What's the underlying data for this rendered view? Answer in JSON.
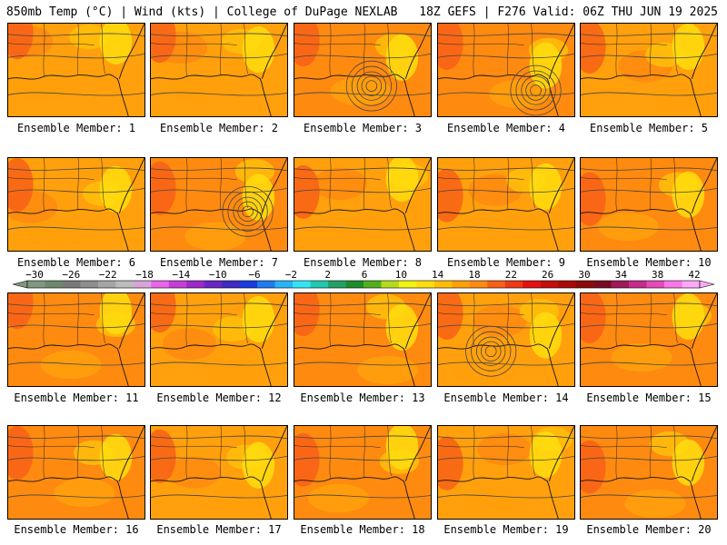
{
  "header": {
    "left_title": "850mb Temp (°C) | Wind (kts) | College of DuPage NEXLAB",
    "right_title": "18Z GEFS | F276 Valid: 06Z THU JUN 19 2025"
  },
  "colorbar": {
    "labels": [
      "−30",
      "−26",
      "−22",
      "−18",
      "−14",
      "−10",
      "−6",
      "−2",
      "2",
      "6",
      "10",
      "14",
      "18",
      "22",
      "26",
      "30",
      "34",
      "38",
      "42"
    ],
    "colors": [
      "#7f977f",
      "#6e876e",
      "#7a7a7a",
      "#8d8d8d",
      "#a5a5a5",
      "#bcbcbc",
      "#d8a4d8",
      "#e866e8",
      "#c43ed8",
      "#9c2ac8",
      "#6a26c4",
      "#3e2cc4",
      "#1a3ce0",
      "#1e7cf0",
      "#28b4f4",
      "#34e4f4",
      "#22c8b0",
      "#22a066",
      "#1e8c2c",
      "#52b01e",
      "#b4dc1e",
      "#f2f214",
      "#ffdd0e",
      "#ffbe0a",
      "#ffa00c",
      "#ff8a10",
      "#f86018",
      "#ec3a16",
      "#e01414",
      "#c40e0e",
      "#a80a0a",
      "#8c0a0a",
      "#7a0a22",
      "#a01a5a",
      "#c62a8a",
      "#e44ab8",
      "#f878e8",
      "#fcaaf8"
    ]
  },
  "panels": [
    {
      "label": "Ensemble Member: 1",
      "base": "#ffa00c",
      "low": false
    },
    {
      "label": "Ensemble Member: 2",
      "base": "#ffa00c",
      "low": false
    },
    {
      "label": "Ensemble Member: 3",
      "base": "#ff8a10",
      "low": true
    },
    {
      "label": "Ensemble Member: 4",
      "base": "#ff8a10",
      "low": true
    },
    {
      "label": "Ensemble Member: 5",
      "base": "#ffa00c",
      "low": false
    },
    {
      "label": "Ensemble Member: 6",
      "base": "#ffa00c",
      "low": false
    },
    {
      "label": "Ensemble Member: 7",
      "base": "#ff8a10",
      "low": true
    },
    {
      "label": "Ensemble Member: 8",
      "base": "#ffa00c",
      "low": false
    },
    {
      "label": "Ensemble Member: 9",
      "base": "#ffa00c",
      "low": false
    },
    {
      "label": "Ensemble Member: 10",
      "base": "#ff8a10",
      "low": false
    },
    {
      "label": "Ensemble Member: 11",
      "base": "#ff8a10",
      "low": false
    },
    {
      "label": "Ensemble Member: 12",
      "base": "#ffa00c",
      "low": false
    },
    {
      "label": "Ensemble Member: 13",
      "base": "#ff8a10",
      "low": false
    },
    {
      "label": "Ensemble Member: 14",
      "base": "#ffa00c",
      "low": true
    },
    {
      "label": "Ensemble Member: 15",
      "base": "#ff8a10",
      "low": false
    },
    {
      "label": "Ensemble Member: 16",
      "base": "#ff8a10",
      "low": false
    },
    {
      "label": "Ensemble Member: 17",
      "base": "#ffa00c",
      "low": false
    },
    {
      "label": "Ensemble Member: 18",
      "base": "#ff8a10",
      "low": false
    },
    {
      "label": "Ensemble Member: 19",
      "base": "#ffa00c",
      "low": false
    },
    {
      "label": "Ensemble Member: 20",
      "base": "#ff8a10",
      "low": false
    }
  ]
}
